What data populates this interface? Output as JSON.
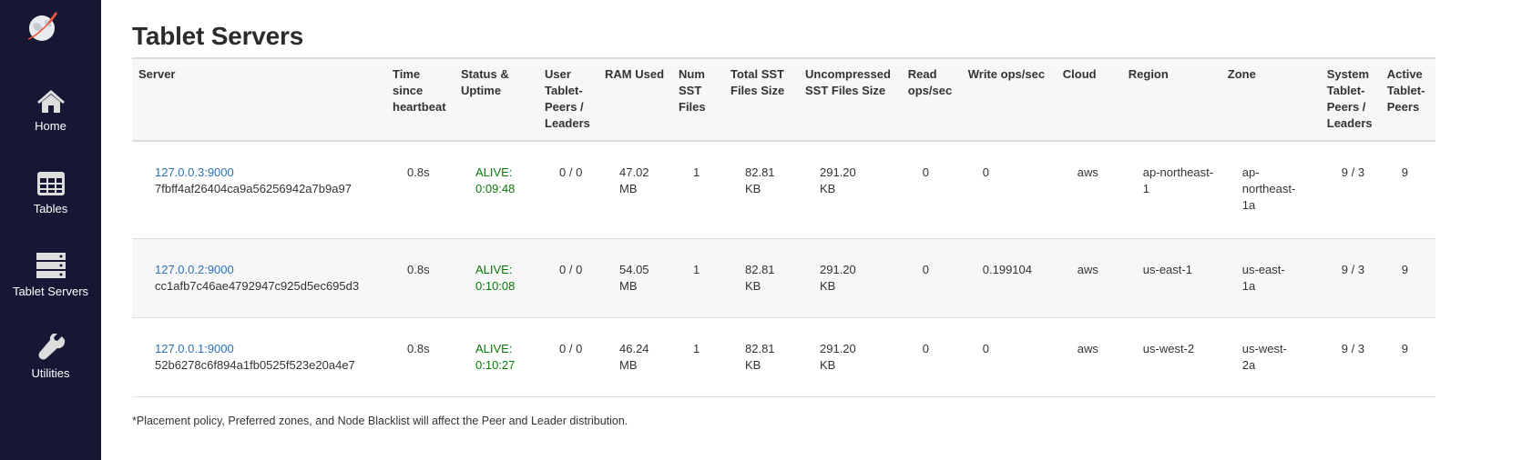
{
  "sidebar": {
    "items": [
      {
        "label": "Home",
        "icon": "home-icon"
      },
      {
        "label": "Tables",
        "icon": "table-icon"
      },
      {
        "label": "Tablet Servers",
        "icon": "server-icon"
      },
      {
        "label": "Utilities",
        "icon": "wrench-icon"
      }
    ]
  },
  "page": {
    "title": "Tablet Servers",
    "note": "*Placement policy, Preferred zones, and Node Blacklist will affect the Peer and Leader distribution."
  },
  "table": {
    "headers": [
      "Server",
      "Time since heartbeat",
      "Status & Uptime",
      "User Tablet-Peers / Leaders",
      "RAM Used",
      "Num SST Files",
      "Total SST Files Size",
      "Uncompressed SST Files Size",
      "Read ops/sec",
      "Write ops/sec",
      "Cloud",
      "Region",
      "Zone",
      "System Tablet-Peers / Leaders",
      "Active Tablet-Peers"
    ],
    "rows": [
      {
        "address": "127.0.0.3:9000",
        "uuid": "7fbff4af26404ca9a56256942a7b9a97",
        "heartbeat": "0.8s",
        "status": "ALIVE: 0:09:48",
        "user_peers": "0 / 0",
        "ram": "47.02 MB",
        "num_sst": "1",
        "total_sst": "82.81 KB",
        "uncompressed_sst": "291.20 KB",
        "read_ops": "0",
        "write_ops": "0",
        "cloud": "aws",
        "region": "ap-northeast-1",
        "zone": "ap-northeast-1a",
        "system_peers": "9 / 3",
        "active_peers": "9"
      },
      {
        "address": "127.0.0.2:9000",
        "uuid": "cc1afb7c46ae4792947c925d5ec695d3",
        "heartbeat": "0.8s",
        "status": "ALIVE: 0:10:08",
        "user_peers": "0 / 0",
        "ram": "54.05 MB",
        "num_sst": "1",
        "total_sst": "82.81 KB",
        "uncompressed_sst": "291.20 KB",
        "read_ops": "0",
        "write_ops": "0.199104",
        "cloud": "aws",
        "region": "us-east-1",
        "zone": "us-east-1a",
        "system_peers": "9 / 3",
        "active_peers": "9"
      },
      {
        "address": "127.0.0.1:9000",
        "uuid": "52b6278c6f894a1fb0525f523e20a4e7",
        "heartbeat": "0.8s",
        "status": "ALIVE: 0:10:27",
        "user_peers": "0 / 0",
        "ram": "46.24 MB",
        "num_sst": "1",
        "total_sst": "82.81 KB",
        "uncompressed_sst": "291.20 KB",
        "read_ops": "0",
        "write_ops": "0",
        "cloud": "aws",
        "region": "us-west-2",
        "zone": "us-west-2a",
        "system_peers": "9 / 3",
        "active_peers": "9"
      }
    ]
  },
  "colors": {
    "sidebar": "#151735",
    "link": "#2a73b9",
    "alive": "#0a7a0a"
  }
}
